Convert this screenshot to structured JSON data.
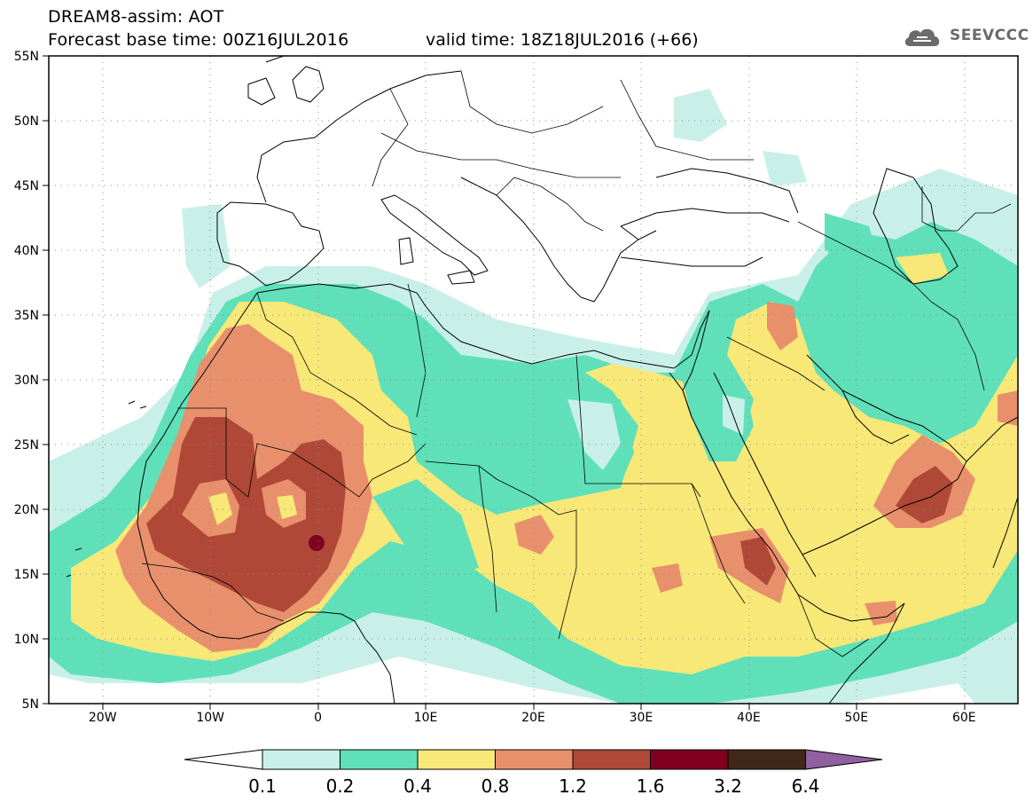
{
  "header": {
    "title": "DREAM8-assim: AOT",
    "base_time_label": "Forecast base time: 00Z16JUL2016",
    "valid_time_label": "valid time: 18Z18JUL2016 (+66)"
  },
  "logo": {
    "text": "SEEVCCC",
    "icon": "cloud-icon"
  },
  "map": {
    "lon_range": [
      -25,
      65
    ],
    "lat_range": [
      5,
      55
    ],
    "lat_ticks": [
      {
        "value": 55,
        "label": "55N"
      },
      {
        "value": 50,
        "label": "50N"
      },
      {
        "value": 45,
        "label": "45N"
      },
      {
        "value": 40,
        "label": "40N"
      },
      {
        "value": 35,
        "label": "35N"
      },
      {
        "value": 30,
        "label": "30N"
      },
      {
        "value": 25,
        "label": "25N"
      },
      {
        "value": 20,
        "label": "20N"
      },
      {
        "value": 15,
        "label": "15N"
      },
      {
        "value": 10,
        "label": "10N"
      },
      {
        "value": 5,
        "label": "5N"
      }
    ],
    "lon_ticks": [
      {
        "value": -20,
        "label": "20W"
      },
      {
        "value": -10,
        "label": "10W"
      },
      {
        "value": 0,
        "label": "0"
      },
      {
        "value": 10,
        "label": "10E"
      },
      {
        "value": 20,
        "label": "20E"
      },
      {
        "value": 30,
        "label": "30E"
      },
      {
        "value": 40,
        "label": "40E"
      },
      {
        "value": 50,
        "label": "50E"
      },
      {
        "value": 60,
        "label": "60E"
      }
    ]
  },
  "colorbar": {
    "colors": [
      "#c8f0e8",
      "#5fe0b8",
      "#f8e878",
      "#e8906c",
      "#b04838",
      "#800020",
      "#402818"
    ],
    "under_color": "#ffffff",
    "over_color": "#9060a0",
    "labels": [
      "0.1",
      "0.2",
      "0.4",
      "0.8",
      "1.2",
      "1.6",
      "3.2",
      "6.4"
    ]
  }
}
